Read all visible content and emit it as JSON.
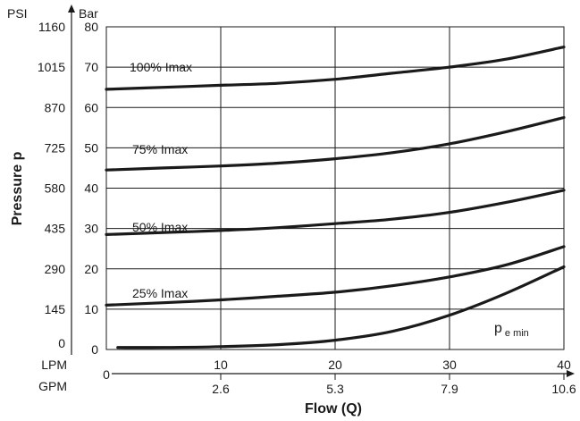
{
  "chart_data": {
    "type": "line",
    "xlabel": "Flow (Q)",
    "ylabel": "Pressure p",
    "x_unit_primary": "LPM",
    "x_unit_secondary": "GPM",
    "y_unit_primary": "Bar",
    "y_unit_secondary": "PSI",
    "xlim": [
      0,
      40
    ],
    "ylim": [
      0,
      80
    ],
    "grid": true,
    "x_ticks": [
      {
        "lpm": "0",
        "gpm": ""
      },
      {
        "lpm": "10",
        "gpm": "2.6"
      },
      {
        "lpm": "20",
        "gpm": "5.3"
      },
      {
        "lpm": "30",
        "gpm": "7.9"
      },
      {
        "lpm": "40",
        "gpm": "10.6"
      }
    ],
    "y_ticks": [
      {
        "bar": "0",
        "psi": "0"
      },
      {
        "bar": "10",
        "psi": "145"
      },
      {
        "bar": "20",
        "psi": "290"
      },
      {
        "bar": "30",
        "psi": "435"
      },
      {
        "bar": "40",
        "psi": "580"
      },
      {
        "bar": "50",
        "psi": "725"
      },
      {
        "bar": "60",
        "psi": "870"
      },
      {
        "bar": "70",
        "psi": "1015"
      },
      {
        "bar": "80",
        "psi": "1160"
      }
    ],
    "series": [
      {
        "name": "100% Imax",
        "x": [
          0,
          5,
          10,
          15,
          20,
          25,
          30,
          35,
          40
        ],
        "y": [
          64.5,
          65.0,
          65.5,
          66.0,
          67.0,
          68.5,
          70.0,
          72.0,
          75.0
        ]
      },
      {
        "name": "75% Imax",
        "x": [
          0,
          5,
          10,
          15,
          20,
          25,
          30,
          35,
          40
        ],
        "y": [
          44.5,
          45.0,
          45.5,
          46.2,
          47.3,
          48.8,
          51.0,
          54.0,
          57.5
        ]
      },
      {
        "name": "50% Imax",
        "x": [
          0,
          5,
          10,
          15,
          20,
          25,
          30,
          35,
          40
        ],
        "y": [
          28.5,
          29.0,
          29.5,
          30.2,
          31.2,
          32.3,
          34.0,
          36.5,
          39.5
        ]
      },
      {
        "name": "25% Imax",
        "x": [
          0,
          5,
          10,
          15,
          20,
          25,
          30,
          35,
          40
        ],
        "y": [
          11.0,
          11.6,
          12.3,
          13.2,
          14.2,
          15.8,
          18.0,
          21.0,
          25.5
        ]
      },
      {
        "name": "p",
        "name_sub": "e min",
        "x": [
          1,
          5,
          10,
          15,
          20,
          25,
          30,
          35,
          40
        ],
        "y": [
          0.5,
          0.5,
          0.7,
          1.2,
          2.3,
          4.5,
          8.5,
          14.0,
          20.5
        ]
      }
    ],
    "series_color": "#1a1a1a",
    "grid_color": "#1a1a1a"
  }
}
